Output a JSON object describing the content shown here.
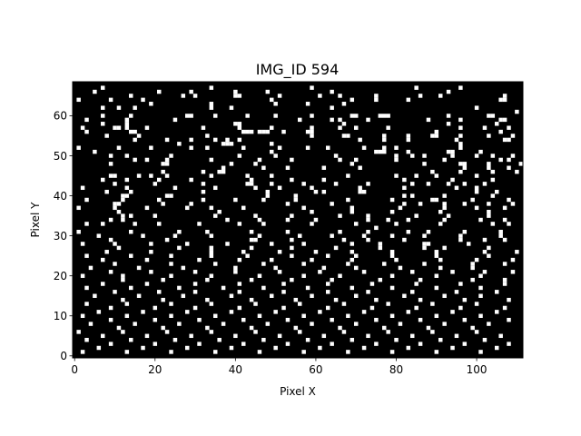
{
  "chart_data": {
    "type": "heatmap",
    "title": "IMG_ID 594",
    "xlabel": "Pixel X",
    "ylabel": "Pixel Y",
    "width": 112,
    "height": 69,
    "xlim": [
      0,
      112
    ],
    "ylim": [
      0,
      69
    ],
    "origin": "lower",
    "x_ticks": [
      0,
      20,
      40,
      60,
      80,
      100
    ],
    "y_ticks": [
      0,
      10,
      20,
      30,
      40,
      50,
      60
    ],
    "grid": false,
    "legend": "none",
    "colormap": {
      "background": "#000000",
      "foreground": "#ffffff"
    },
    "rows": [
      "................................................................................................................",
      ".......#..........................#........................#.........................#..........#...........",
      ".....#...............#.......#..........#.......#...............#............................#...............",
      "..............#............#..#.........##.........#.........#....#........#..........#....#...............#...",
      ".#.......#.......#...............................#...................#.....#.......#......................##....",
      "...................#..............#...............#.......#........#............................................",
      ".......#...#...#..................#....#........................#...................................#.........",
      "..............................................................................................................#.",
      ".......#......#.............##.....#.......#......#........#.........##.....###..............#.........##.....",
      "...#.........#...........#..............................#.......#.#......#..............#.......#.........##....",
      ".......#.....#..........................##.........................#.........................#...........#....",
      "..#.......##.#....#.............#........#.......#.........#......#...#.......#.................#.....#.....#...",
      "...#..........##..........................###.###...#.....##..............................#...............#....",
      "........#.......#................#.........................#.......##........#.....#.....##.....#......#.....#.",
      "...............#.......#.....#.....#..#..#.............................#.....#.....#...........#...........##...",
      "..........................#..........###.........#..............................................#..............",
      ".#.........#.......#.........#...#........#........#......#....#........#....#..#...............#..............",
      ".....#...........................................#.........................###.....#.........##......#.........",
      ".........#...#..........#................#........#..............#..............#...#..#......#.....#...#....#..",
      "...............#..#....#..........#...........#.......#...........#...#.........#...........#.............#.#..",
      ".........#............##...............#.....#.......................#.................#........##.....#.......#",
      ".....................................#.........#.....#........#........#.........................#.....#....#..",
      "......................#.........#...##...................................................#......#.......#.....#.",
      ".........##.....#..#...#..........#........#.....#..................#...........#....#....#.........#..........",
      ".......#.....#.......#.......#..............#.........#.......#...................#...........#.........#......",
      "..........#.........#...........#..........##....#.......#.......#.......#..........#...#....#...#....#.......",
      "..#..........#...........#.........#.........#.....#.......#...........#..........#............#....#.........",
      "........#.....#.................#...............#...........#.#........##...........................#....#....",
      "............##.........##.......................#......#..........................#.#.......#...........#......",
      "...#........#........#..........#.......#......#.......#............#..........#.........##........#........#...",
      "..........##..........#......#.......................#..........#.................#...#.....#....#.....#.....#.",
      ".#........#.......#.........#.....#.......#..............#...........#...........#..........#.......#......#..",
      "...........#........................#......................#.........#.........#...........#...........#.......",
      "............#.#.....#..............#.........#........#...........#......#...........#.......#.........#.......",
      ".........#..#.........................#.......#......#......#............#....#....#........#........#.....#..",
      "...#...#.......#.....#.........#.........#.....#...........#..........#.........#..........#............#...#.",
      "...........................................................................#..................................",
      ".#............#...........#......#..........#........#............#......#.........#....#........#........#....",
      "......#..........#.......#........#...........#.........#.......#.......#......#.......#........#.........#....",
      ".........#.............#....................##........#............#.....#........#.............#.....#....#...",
      "..#.......#........#........#.........#..........#.......#...........#......#..........##.........#...........",
      "...........#..............#.......#.........#.........#..........#..........#..........#....#..........#......",
      "........#..........#..............#.......#........#........#........#.........#..........#...........#.......#",
      "...#..........#.........#.........#........#..........#........#......#........#..........#............#......",
      ".......#..........#............#.........#.......#.........#.........#..........#..........#........#........#",
      "..........#.............#..........#...........#.........#..........#........#.........#...........#.......#..",
      "....#...........#..........#............#.........#...........#.......#..........#.........#.......#.........",
      ".........#.........#..........#.........#..........#.........#..........#...........#.........#.......#......#",
      "..#.........#...........#.........#...........#..........#........#............#..........#..........#........",
      "............#.........#..........#..........#.........#.........#...........#.........#............#.......#..",
      ".......#..........#...........#..........#..........#..........#..........#..........#..........#..........#..",
      "...#..........#...........#..........#.........#..........#..........#.........#..........#..........#........",
      "..........#..........#........#..........#..........#..........#.........#..........#..........#.........#....",
      ".....#..........#..........#...........#.........#.........#..........#...........#.........#........#........",
      "............#.........#..........#..........#..........#.........#.........#..........#..........#..........#",
      "...#.........#..........#.........#..........#..........#..........#..........#..........#..........#........",
      ".........#..........#.........#..........#..........#..........#..........#..........#..........#..........#..",
      "......#..........#..........#..........#..........#..........#..........#..........#..........#..........#....",
      "..#..........#..........#..........#..........#..........#..........#..........#..........#..........#........",
      ".........#..........#..........#..........#..........#..........#..........#..........#..........#..........#",
      "....#..........#..........#..........#..........#..........#..........#..........#..........#..........#......",
      "...........#..........#..........#..........#..........#..........#..........#..........#..........#.........",
      ".#..........#..........#..........#..........#..........#..........#..........#..........#..........#.........",
      ".......#..........#..........#..........#..........#..........#..........#..........#..........#..........#..",
      "...#..........#..........#..........#..........#..........#..........#..........#..........#..........#.......",
      ".........#..........#..........#..........#..........#..........#..........#..........#..........#..........#",
      "......#..........#..........#..........#..........#..........#..........#..........#..........#..........#....",
      "..#..........#..........#..........#..........#..........#..........#..........#..........#..........#........",
      "................................................................................................................"
    ]
  }
}
